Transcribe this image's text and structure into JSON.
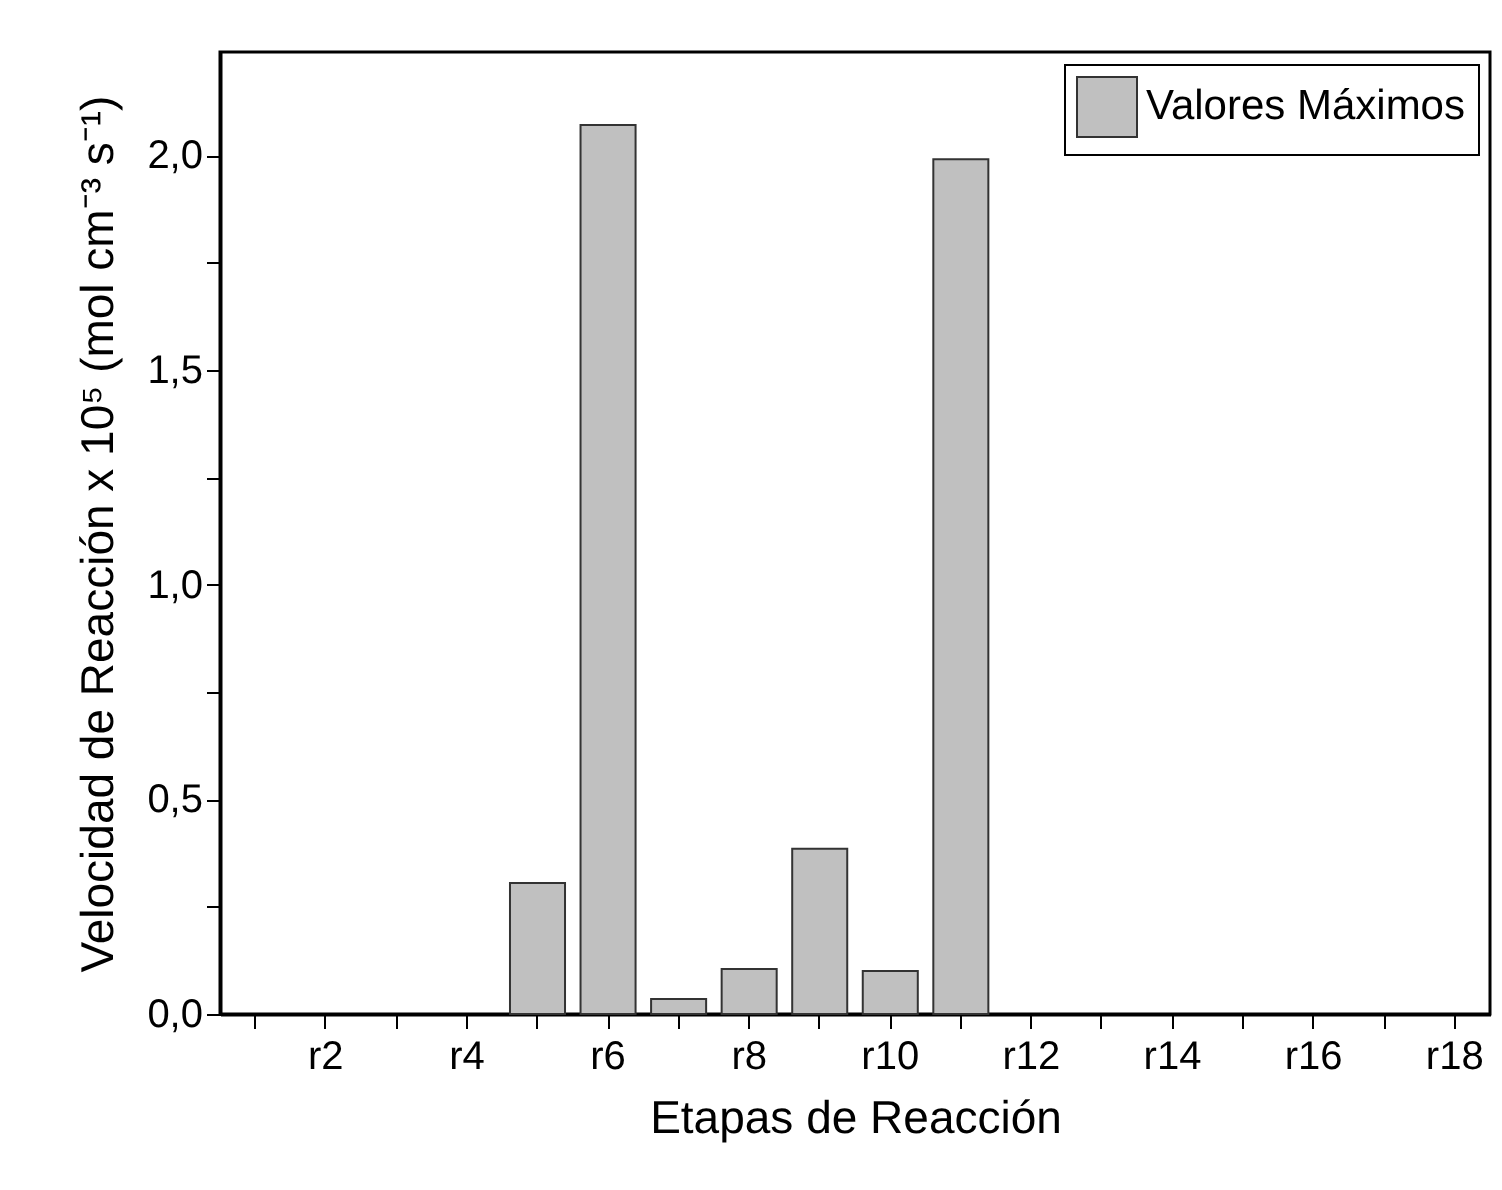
{
  "chart_data": {
    "type": "bar",
    "xlabel": "Etapas de Reacción",
    "ylabel": "Velocidad de Reacción x 10⁵ (mol cm⁻³ s⁻¹)",
    "categories": [
      null,
      "r2",
      null,
      "r4",
      null,
      "r6",
      null,
      "r8",
      null,
      "r10",
      null,
      "r12",
      null,
      "r14",
      null,
      "r16",
      null,
      "r18"
    ],
    "series": [
      {
        "name": "Valores Máximos",
        "color": "#c0c0c0",
        "values": [
          null,
          null,
          null,
          null,
          0.305,
          2.07,
          0.035,
          0.105,
          0.385,
          0.1,
          1.99,
          null,
          null,
          null,
          null,
          null,
          null,
          null
        ]
      }
    ],
    "ylim": [
      0,
      2.24
    ],
    "yticks": [
      {
        "value": 0,
        "label": "0,0"
      },
      {
        "value": 0.25,
        "label": null
      },
      {
        "value": 0.5,
        "label": "0,5"
      },
      {
        "value": 0.75,
        "label": null
      },
      {
        "value": 1,
        "label": "1,0"
      },
      {
        "value": 1.25,
        "label": null
      },
      {
        "value": 1.5,
        "label": "1,5"
      },
      {
        "value": 1.75,
        "label": null
      },
      {
        "value": 2,
        "label": "2,0"
      }
    ],
    "legend": "top right",
    "grid": false
  }
}
